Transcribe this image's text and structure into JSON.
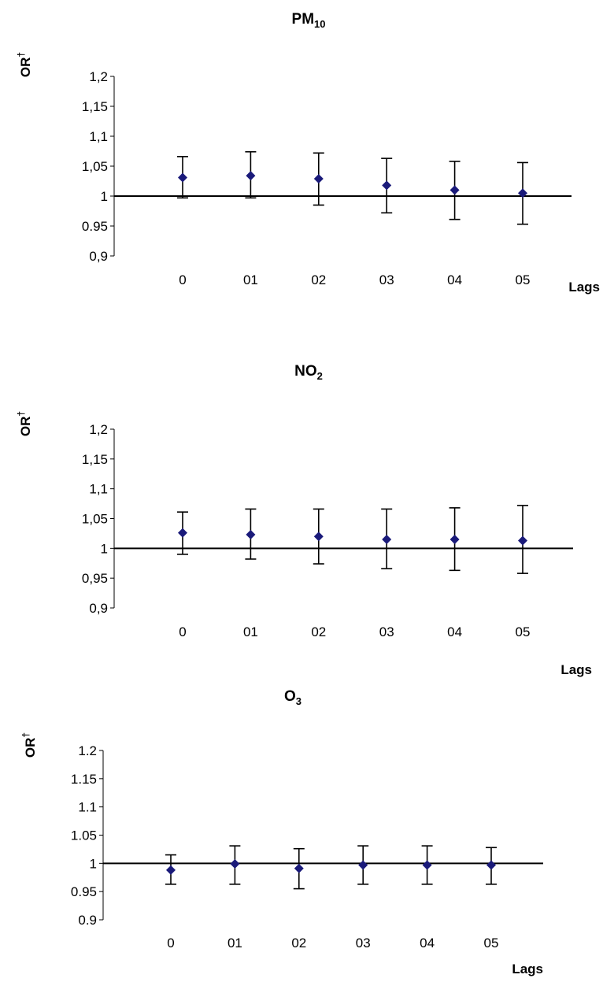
{
  "chart_data": [
    {
      "type": "scatter",
      "title": {
        "main": "PM",
        "sub": "10"
      },
      "ylabel": {
        "main": "OR",
        "sup": "†"
      },
      "xlabel": "Lags",
      "categories": [
        "0",
        "01",
        "02",
        "03",
        "04",
        "05"
      ],
      "yticks": [
        "0,9",
        "0.95",
        "1",
        "1,05",
        "1,1",
        "1,15",
        "1,2"
      ],
      "ylim": [
        0.9,
        1.2
      ],
      "reference_y": 1,
      "marker_color": "#1a1a7a",
      "series": [
        {
          "values": [
            1.031,
            1.034,
            1.029,
            1.018,
            1.01,
            1.005
          ],
          "lower": [
            0.997,
            0.997,
            0.985,
            0.972,
            0.961,
            0.953
          ],
          "upper": [
            1.066,
            1.074,
            1.072,
            1.063,
            1.058,
            1.056
          ]
        }
      ]
    },
    {
      "type": "scatter",
      "title": {
        "main": "NO",
        "sub": "2"
      },
      "ylabel": {
        "main": "OR",
        "sup": "†"
      },
      "xlabel": "Lags",
      "categories": [
        "0",
        "01",
        "02",
        "03",
        "04",
        "05"
      ],
      "yticks": [
        "0,9",
        "0,95",
        "1",
        "1,05",
        "1,1",
        "1,15",
        "1,2"
      ],
      "ylim": [
        0.9,
        1.2
      ],
      "reference_y": 1,
      "marker_color": "#1a1a7a",
      "series": [
        {
          "values": [
            1.026,
            1.023,
            1.02,
            1.015,
            1.015,
            1.013
          ],
          "lower": [
            0.99,
            0.982,
            0.974,
            0.966,
            0.963,
            0.958
          ],
          "upper": [
            1.061,
            1.066,
            1.066,
            1.066,
            1.068,
            1.072
          ]
        }
      ]
    },
    {
      "type": "scatter",
      "title": {
        "main": "O",
        "sub": "3"
      },
      "ylabel": {
        "main": "OR",
        "sup": "†"
      },
      "xlabel": "Lags",
      "categories": [
        "0",
        "01",
        "02",
        "03",
        "04",
        "05"
      ],
      "yticks": [
        "0.9",
        "0.95",
        "1",
        "1.05",
        "1.1",
        "1.15",
        "1.2"
      ],
      "ylim": [
        0.9,
        1.2
      ],
      "reference_y": 1,
      "marker_color": "#1a1a7a",
      "series": [
        {
          "values": [
            0.988,
            0.999,
            0.991,
            0.997,
            0.997,
            0.997
          ],
          "lower": [
            0.963,
            0.963,
            0.955,
            0.963,
            0.963,
            0.963
          ],
          "upper": [
            1.015,
            1.031,
            1.026,
            1.031,
            1.031,
            1.028
          ]
        }
      ]
    }
  ]
}
